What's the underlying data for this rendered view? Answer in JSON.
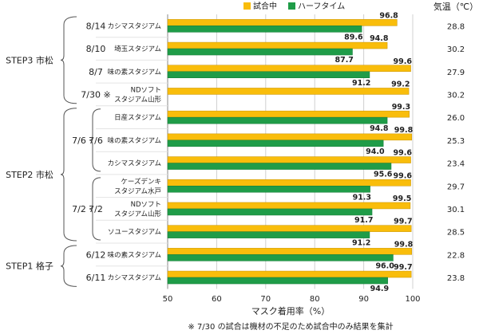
{
  "chart_data": {
    "type": "bar",
    "orientation": "horizontal",
    "xlabel": "マスク着用率（%）",
    "xlim": [
      50,
      100
    ],
    "xticks": [
      "50",
      "60",
      "70",
      "80",
      "90",
      "100"
    ],
    "legend": {
      "placement": "top"
    },
    "temp_header": "気温（℃）",
    "footnote": "※ 7/30 の試合は機材の不足のため試合中のみ結果を集計",
    "series": [
      {
        "name": "試合中",
        "color": "#f9bd0b"
      },
      {
        "name": "ハーフタイム",
        "color": "#1f9c48"
      }
    ],
    "rows": [
      {
        "venue": [
          "カシマスタジアム"
        ],
        "date": "8/14",
        "values": [
          96.8,
          89.6
        ],
        "labels": [
          "96.8",
          "89.6"
        ],
        "temp": "28.8"
      },
      {
        "venue": [
          "埼玉スタジアム"
        ],
        "date": "8/10",
        "values": [
          94.8,
          87.7
        ],
        "labels": [
          "94.8",
          "87.7"
        ],
        "temp": "30.2"
      },
      {
        "venue": [
          "味の素スタジアム"
        ],
        "date": "8/7",
        "values": [
          99.6,
          91.2
        ],
        "labels": [
          "99.6",
          "91.2"
        ],
        "temp": "27.9"
      },
      {
        "venue": [
          "NDソフト",
          "スタジアム山形"
        ],
        "date": "7/30 ※",
        "values": [
          99.2,
          null
        ],
        "labels": [
          "99.2",
          ""
        ],
        "temp": "30.2"
      },
      {
        "venue": [
          "日産スタジアム"
        ],
        "date": "",
        "values": [
          99.3,
          94.8
        ],
        "labels": [
          "99.3",
          "94.8"
        ],
        "temp": "26.0"
      },
      {
        "venue": [
          "味の素スタジアム"
        ],
        "date": "7/6",
        "values": [
          99.8,
          94.0
        ],
        "labels": [
          "99.8",
          "94.0"
        ],
        "temp": "25.3"
      },
      {
        "venue": [
          "カシマスタジアム"
        ],
        "date": "",
        "values": [
          99.6,
          95.6
        ],
        "labels": [
          "99.6",
          "95.6"
        ],
        "temp": "23.4"
      },
      {
        "venue": [
          "ケーズデンキ",
          "スタジアム水戸"
        ],
        "date": "",
        "values": [
          99.6,
          91.3
        ],
        "labels": [
          "99.6",
          "91.3"
        ],
        "temp": "29.7"
      },
      {
        "venue": [
          "NDソフト",
          "スタジアム山形"
        ],
        "date": "7/2",
        "values": [
          99.5,
          91.7
        ],
        "labels": [
          "99.5",
          "91.7"
        ],
        "temp": "30.1"
      },
      {
        "venue": [
          "ソユースタジアム"
        ],
        "date": "",
        "values": [
          99.7,
          91.2
        ],
        "labels": [
          "99.7",
          "91.2"
        ],
        "temp": "28.5"
      },
      {
        "venue": [
          "味の素スタジアム"
        ],
        "date": "6/12",
        "values": [
          99.8,
          96.0
        ],
        "labels": [
          "99.8",
          "96.0"
        ],
        "temp": "22.8"
      },
      {
        "venue": [
          "カシマスタジアム"
        ],
        "date": "6/11",
        "values": [
          99.7,
          94.9
        ],
        "labels": [
          "99.7",
          "94.9"
        ],
        "temp": "23.8"
      }
    ],
    "groups": [
      {
        "label": "STEP3 市松",
        "first_row": 0,
        "last_row": 3
      },
      {
        "label": "STEP2 市松",
        "first_row": 4,
        "last_row": 9
      },
      {
        "label": "STEP1 格子",
        "first_row": 10,
        "last_row": 11
      }
    ],
    "date_groups": [
      {
        "label": "7/6",
        "first_row": 4,
        "last_row": 6
      },
      {
        "label": "7/2",
        "first_row": 7,
        "last_row": 9
      }
    ]
  }
}
